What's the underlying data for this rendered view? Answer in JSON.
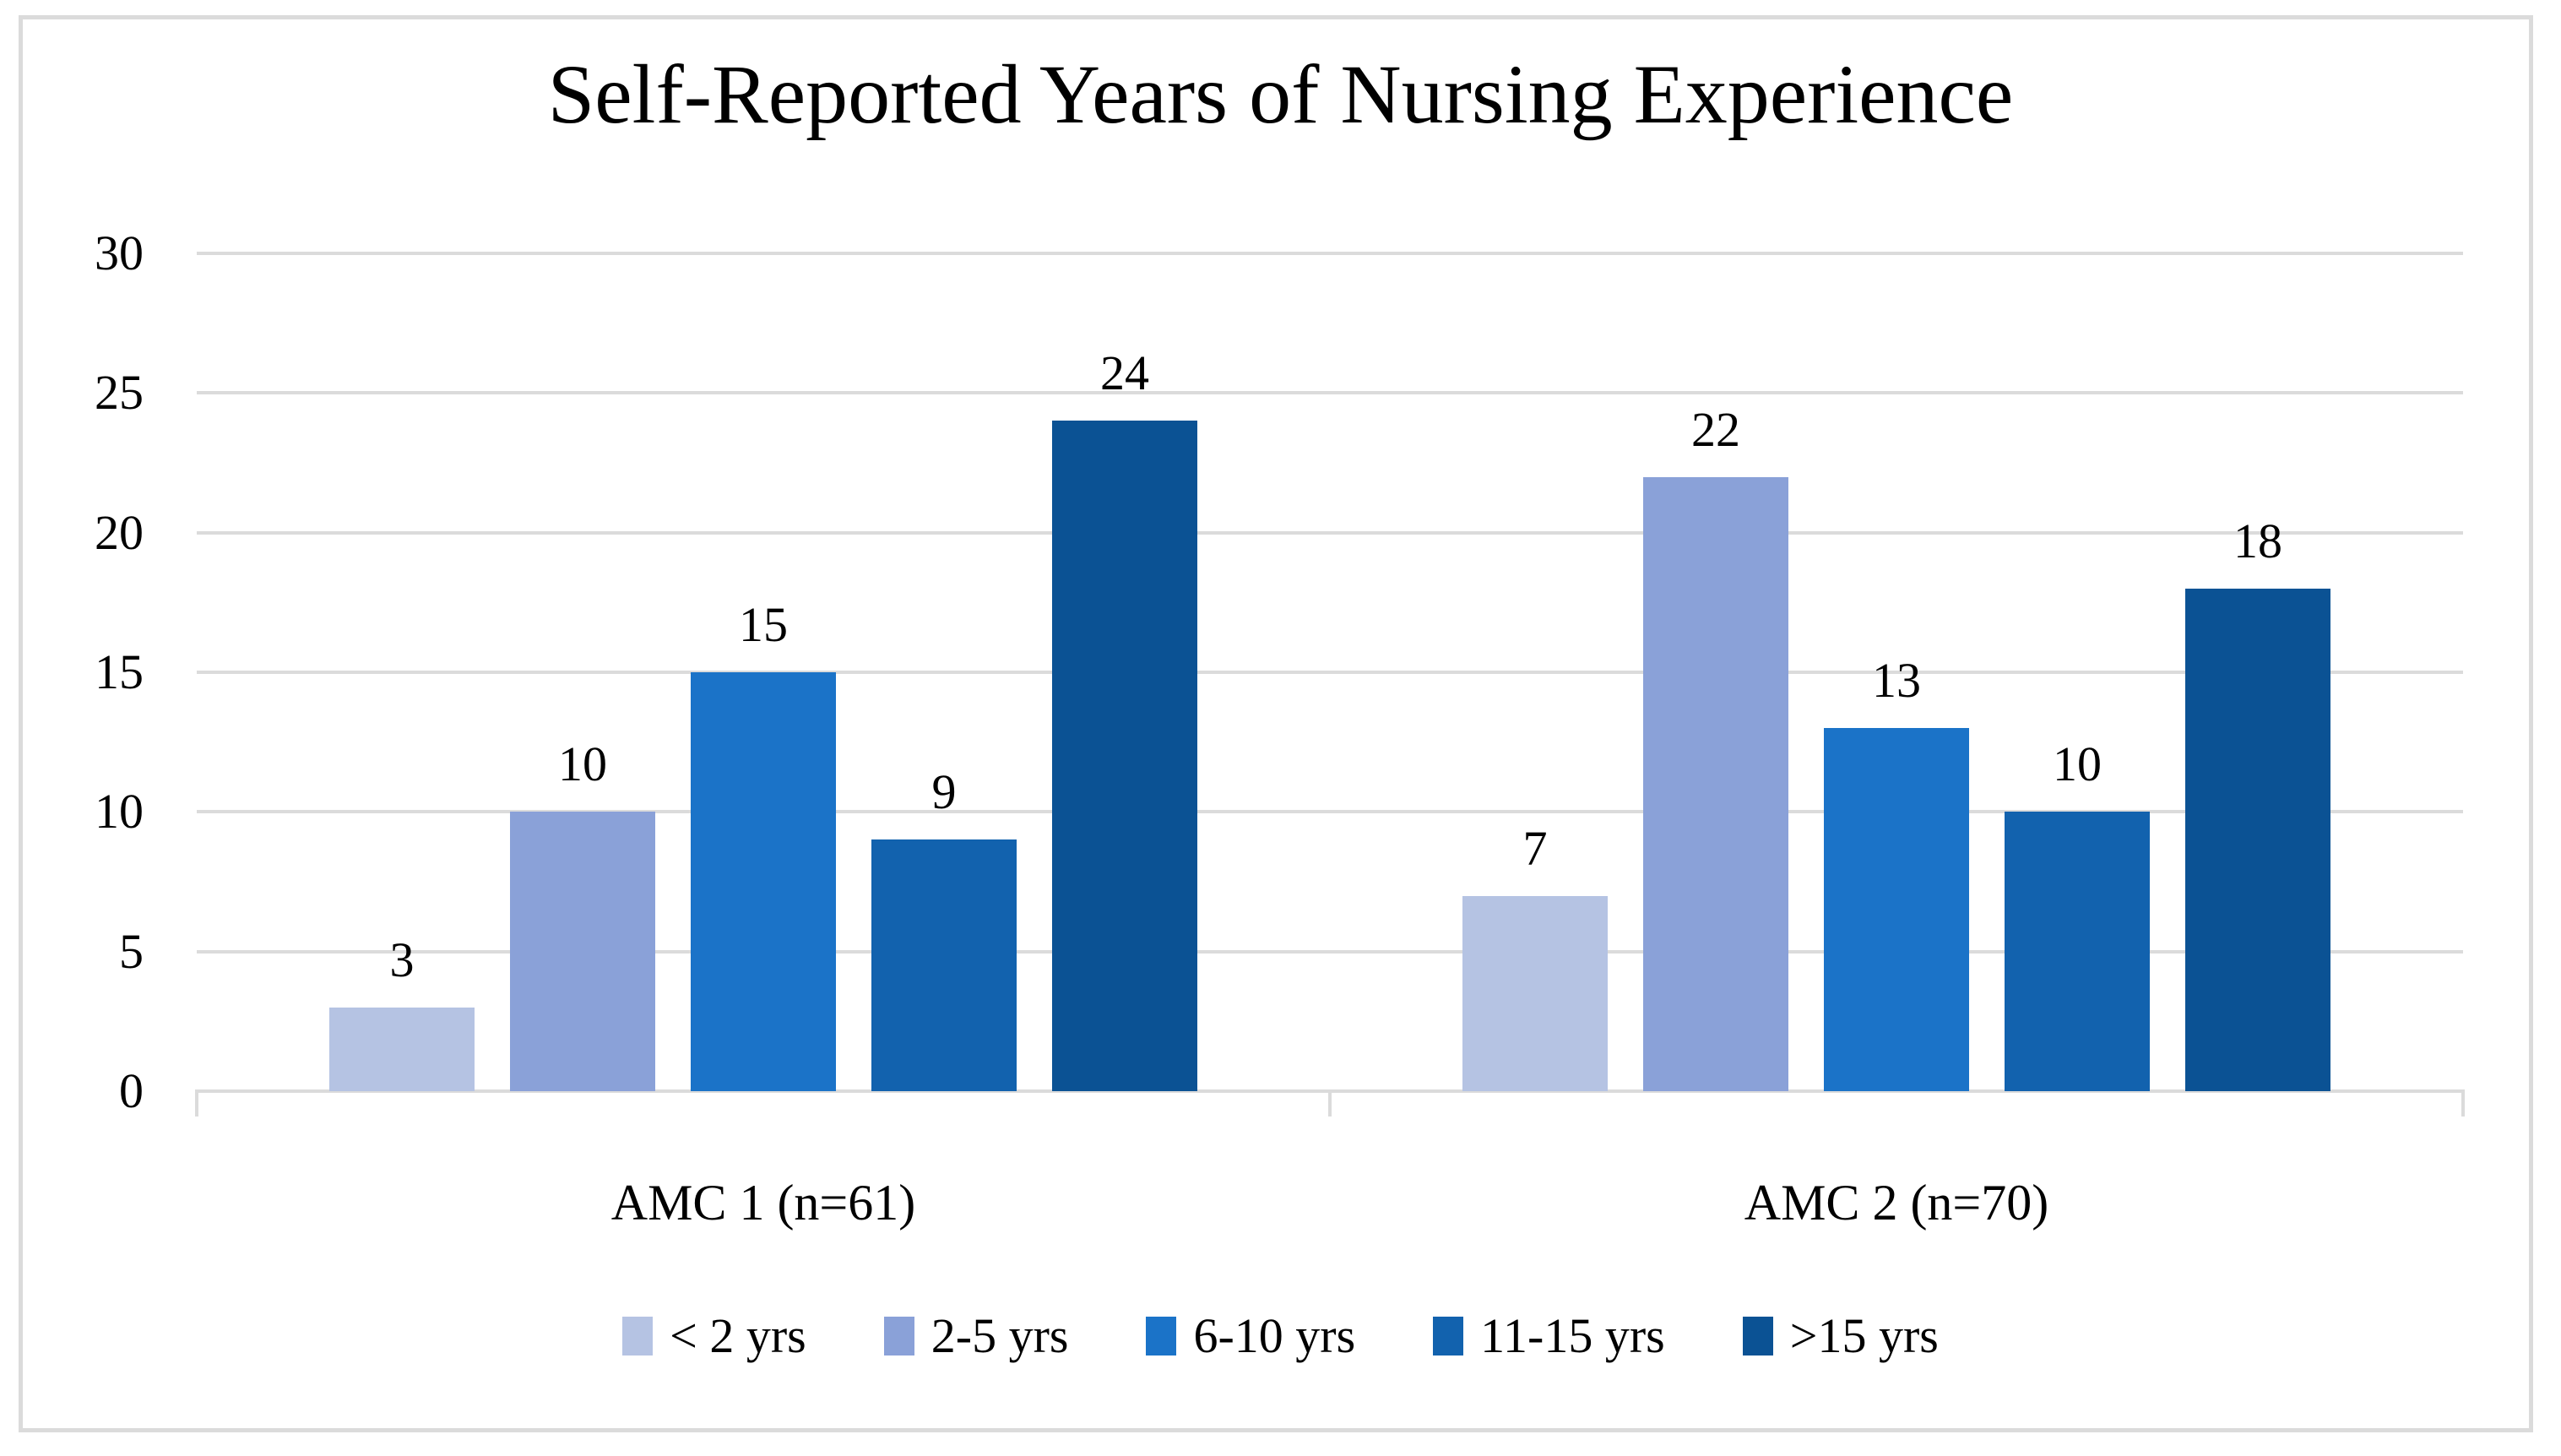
{
  "chart_data": {
    "type": "bar",
    "title": "Self-Reported Years of Nursing Experience",
    "categories": [
      "AMC 1 (n=61)",
      "AMC 2 (n=70)"
    ],
    "series": [
      {
        "name": "< 2 yrs",
        "color": "#B5C3E3",
        "values": [
          3,
          7
        ]
      },
      {
        "name": "2-5 yrs",
        "color": "#8AA1D8",
        "values": [
          10,
          22
        ]
      },
      {
        "name": "6-10 yrs",
        "color": "#1B73C8",
        "values": [
          15,
          13
        ]
      },
      {
        "name": "11-15 yrs",
        "color": "#1262AE",
        "values": [
          9,
          10
        ]
      },
      {
        "name": ">15 yrs",
        "color": "#0B5294",
        "values": [
          24,
          18
        ]
      }
    ],
    "xlabel": "",
    "ylabel": "",
    "ylim": [
      0,
      30
    ],
    "yticks": [
      0,
      5,
      10,
      15,
      20,
      25,
      30
    ],
    "grid": true,
    "gridline_color": "#DBDBDB",
    "frame_color": "#DBDBDB",
    "text_color": "#000000",
    "value_labels": true,
    "legend_position": "bottom"
  }
}
